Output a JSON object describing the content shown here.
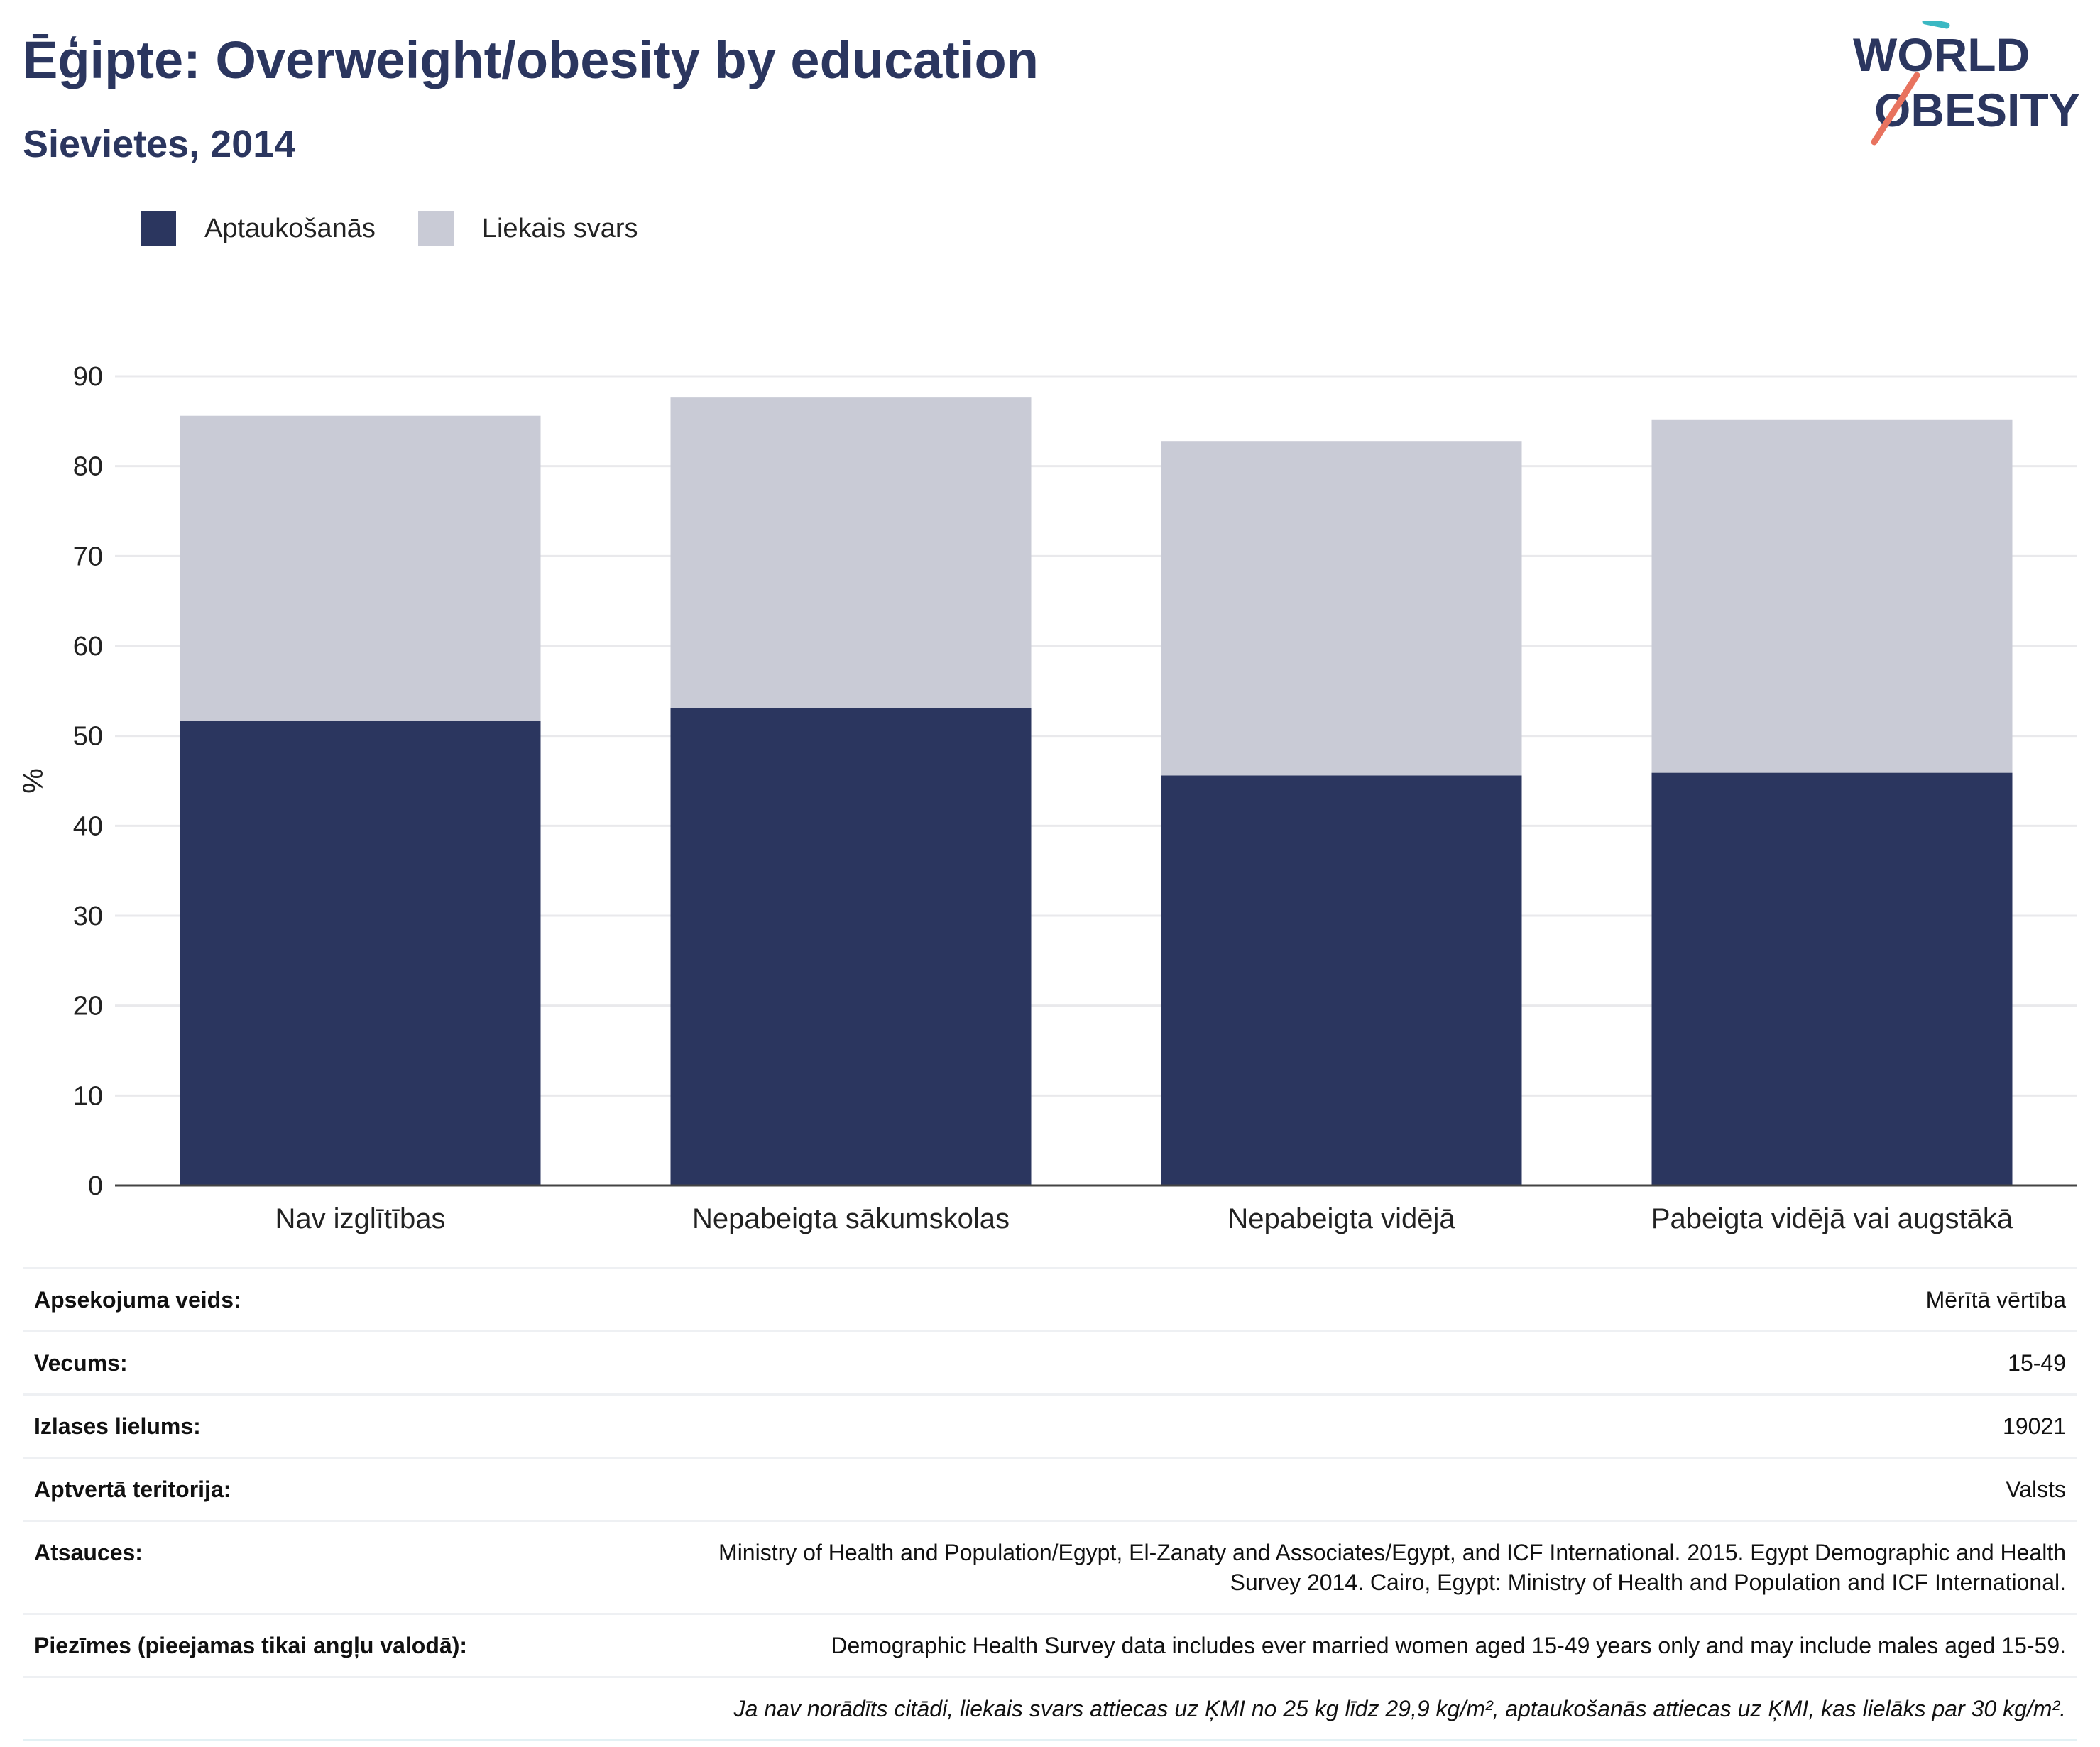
{
  "header": {
    "title": "Ēģipte: Overweight/obesity by education",
    "subtitle": "Sievietes, 2014",
    "logo_line1": "WORLD",
    "logo_line2": "OBESITY"
  },
  "colors": {
    "obesity": "#2b365f",
    "overweight": "#c9cbd6",
    "title": "#2b365f",
    "logo_teal": "#3bb8c3",
    "logo_coral": "#e8735f"
  },
  "chart_data": {
    "type": "bar",
    "stacked": true,
    "categories": [
      "Nav izglītības",
      "Nepabeigta sākumskolas",
      "Nepabeigta vidējā",
      "Pabeigta vidējā vai augstākā"
    ],
    "series": [
      {
        "name": "Aptaukošanās",
        "values": [
          51.7,
          53.1,
          45.6,
          45.9
        ]
      },
      {
        "name": "Liekais svars",
        "values": [
          33.9,
          34.6,
          37.2,
          39.3
        ]
      }
    ],
    "ylabel": "%",
    "ylim": [
      0,
      90
    ],
    "yticks": [
      0,
      10,
      20,
      30,
      40,
      50,
      60,
      70,
      80,
      90
    ],
    "grid": true,
    "legend_position": "top-left"
  },
  "info": {
    "rows": [
      {
        "label": "Apsekojuma veids:",
        "value": "Mērītā vērtība"
      },
      {
        "label": "Vecums:",
        "value": "15-49"
      },
      {
        "label": "Izlases lielums:",
        "value": "19021"
      },
      {
        "label": "Aptvertā teritorija:",
        "value": "Valsts"
      },
      {
        "label": "Atsauces:",
        "value": "Ministry of Health and Population/Egypt, El-Zanaty and Associates/Egypt, and ICF International. 2015. Egypt Demographic and Health Survey 2014. Cairo, Egypt: Ministry of Health and Population and ICF International."
      },
      {
        "label": "Piezīmes (pieejamas tikai angļu valodā):",
        "value": "Demographic Health Survey data includes ever married women aged 15-49 years only and may include males aged 15-59."
      }
    ],
    "footnote": "Ja nav norādīts citādi, liekais svars attiecas uz ĶMI no 25 kg līdz 29,9 kg/m², aptaukošanās attiecas uz ĶMI, kas lielāks par 30 kg/m²."
  }
}
